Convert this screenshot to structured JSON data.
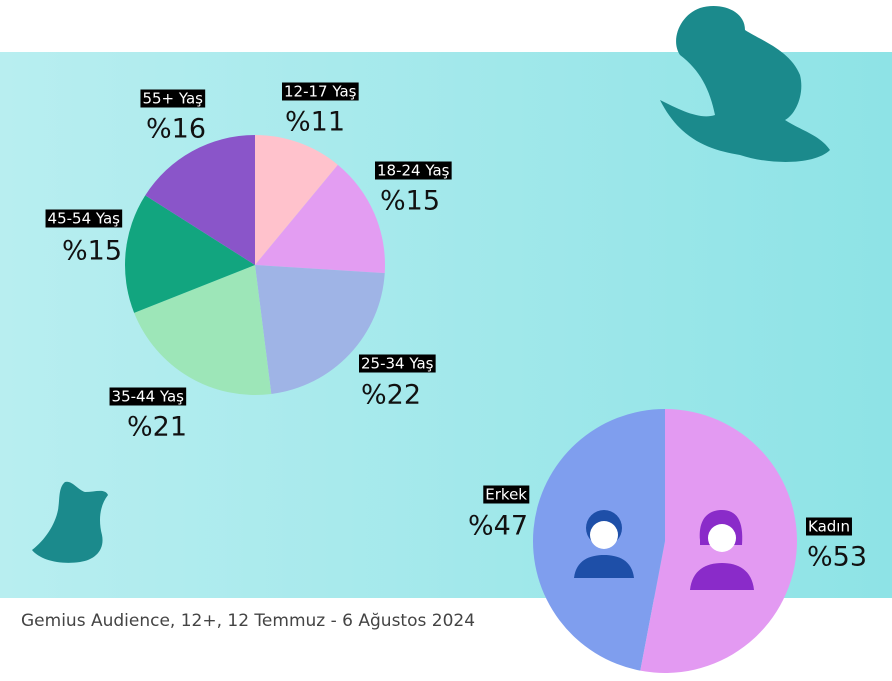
{
  "chart_data": [
    {
      "type": "pie",
      "categories": [
        "12-17 Yaş",
        "18-24 Yaş",
        "25-34 Yaş",
        "35-44 Yaş",
        "45-54 Yaş",
        "55+ Yaş"
      ],
      "values": [
        11,
        15,
        22,
        21,
        15,
        16
      ],
      "value_labels": [
        "%11",
        "%15",
        "%22",
        "%21",
        "%15",
        "%16"
      ],
      "colors": [
        "#ffc2cc",
        "#e39df2",
        "#9fb4e6",
        "#9de6b8",
        "#12a57f",
        "#8a55c9"
      ]
    },
    {
      "type": "pie",
      "categories": [
        "Kadın",
        "Erkek"
      ],
      "values": [
        53,
        47
      ],
      "value_labels": [
        "%53",
        "%47"
      ],
      "colors": [
        "#e39af2",
        "#7f9eee"
      ]
    }
  ],
  "source": "Gemius Audience, 12+, 12 Temmuz - 6 Ağustos 2024"
}
